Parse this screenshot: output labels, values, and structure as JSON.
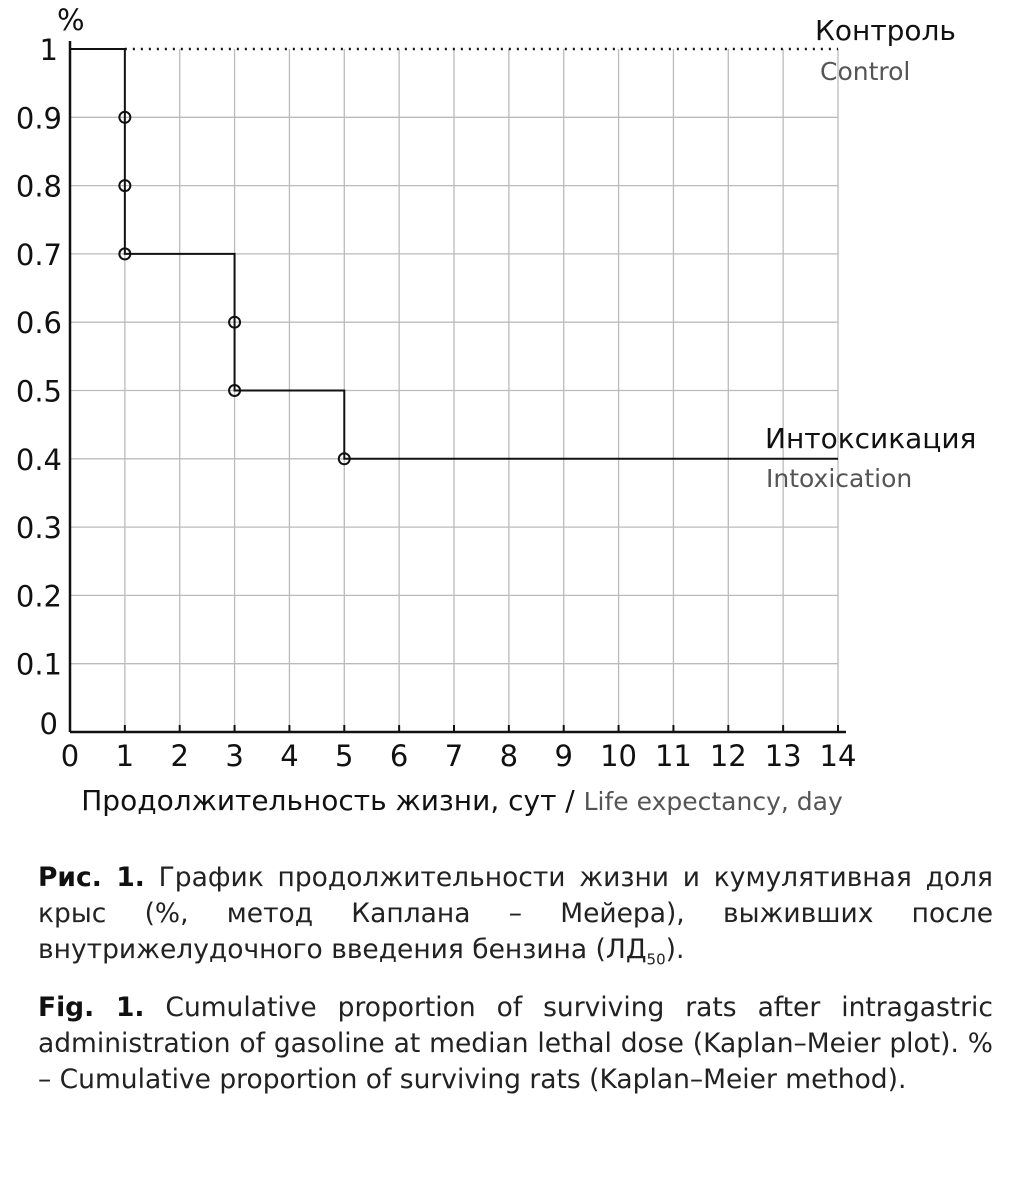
{
  "chart_data": {
    "type": "line",
    "subtype": "kaplan-meier step",
    "ylabel": "%",
    "xlabel_ru": "Продолжительность жизни, сут",
    "xlabel_sep": " / ",
    "xlabel_en": "Life expectancy, day",
    "xlim": [
      0,
      14
    ],
    "ylim": [
      0,
      1
    ],
    "x_ticks": [
      "0",
      "1",
      "2",
      "3",
      "4",
      "5",
      "6",
      "7",
      "8",
      "9",
      "10",
      "11",
      "12",
      "13",
      "14"
    ],
    "y_ticks": [
      "0",
      "0.1",
      "0.2",
      "0.3",
      "0.4",
      "0.5",
      "0.6",
      "0.7",
      "0.8",
      "0.9",
      "1"
    ],
    "grid": true,
    "series": [
      {
        "name_ru": "Контроль",
        "name_en": "Control",
        "style": "dotted",
        "steps": [
          [
            0,
            1
          ],
          [
            14,
            1
          ]
        ],
        "markers": []
      },
      {
        "name_ru": "Интоксикация",
        "name_en": "Intoxication",
        "style": "solid",
        "steps": [
          [
            0,
            1
          ],
          [
            1,
            1
          ],
          [
            1,
            0.7
          ],
          [
            3,
            0.7
          ],
          [
            3,
            0.5
          ],
          [
            5,
            0.5
          ],
          [
            5,
            0.4
          ],
          [
            14,
            0.4
          ]
        ],
        "markers": [
          [
            1,
            0.9
          ],
          [
            1,
            0.8
          ],
          [
            1,
            0.7
          ],
          [
            3,
            0.6
          ],
          [
            3,
            0.5
          ],
          [
            5,
            0.4
          ]
        ]
      }
    ],
    "colors": {
      "line": "#111111",
      "grid": "#bbbbbb",
      "label_en": "#555555"
    }
  },
  "caption": {
    "ru_label": "Рис. 1.",
    "ru_text": " График продолжительности жизни и кумулятивная доля крыс (%, метод Каплана – Мейера), выживших после внутрижелудочного введения бензина (ЛД",
    "ru_sub": "50",
    "ru_end": ").",
    "en_label": "Fig. 1.",
    "en_text": " Cumulative proportion of surviving rats after intragastric administration of gasoline at median lethal dose (Kaplan–Meier plot). % – Cumulative proportion of surviving rats (Kaplan–Meier method)."
  }
}
